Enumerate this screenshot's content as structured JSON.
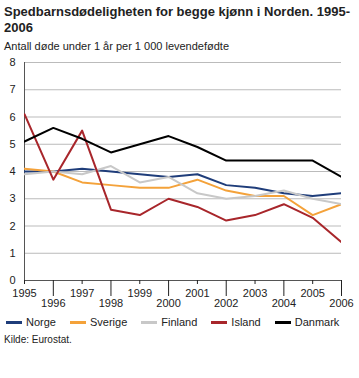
{
  "chart_data": {
    "type": "line",
    "title": "Spedbarnsdødeligheten for begge kjønn i Norden. 1995-2006",
    "subtitle": "Antall døde under 1 år per 1 000 levendefødte",
    "caption": "Kilde: Eurostat.",
    "x": [
      1995,
      1996,
      1997,
      1998,
      1999,
      2000,
      2001,
      2002,
      2003,
      2004,
      2005,
      2006
    ],
    "xlim": [
      1995,
      2006
    ],
    "xticks": [
      1995,
      1996,
      1997,
      1998,
      1999,
      2000,
      2001,
      2002,
      2003,
      2004,
      2005,
      2006
    ],
    "ylim": [
      0,
      8
    ],
    "yticks": [
      0,
      1,
      2,
      3,
      4,
      5,
      6,
      7,
      8
    ],
    "grid": true,
    "legend": "bottom",
    "series": [
      {
        "name": "Norge",
        "color": "#1f3d7a",
        "values": [
          4.0,
          4.0,
          4.1,
          4.0,
          3.9,
          3.8,
          3.9,
          3.5,
          3.4,
          3.2,
          3.1,
          3.2
        ]
      },
      {
        "name": "Sverige",
        "color": "#f4a23a",
        "values": [
          4.1,
          4.0,
          3.6,
          3.5,
          3.4,
          3.4,
          3.7,
          3.3,
          3.1,
          3.1,
          2.4,
          2.8
        ]
      },
      {
        "name": "Finland",
        "color": "#c8c8c8",
        "values": [
          3.9,
          4.0,
          3.9,
          4.2,
          3.6,
          3.8,
          3.2,
          3.0,
          3.1,
          3.3,
          3.0,
          2.8
        ]
      },
      {
        "name": "Island",
        "color": "#a8262b",
        "values": [
          6.1,
          3.7,
          5.5,
          2.6,
          2.4,
          3.0,
          2.7,
          2.2,
          2.4,
          2.8,
          2.3,
          1.4
        ]
      },
      {
        "name": "Danmark",
        "color": "#000000",
        "values": [
          5.1,
          5.6,
          5.2,
          4.7,
          5.0,
          5.3,
          4.9,
          4.4,
          4.4,
          4.4,
          4.4,
          3.8
        ]
      }
    ]
  }
}
